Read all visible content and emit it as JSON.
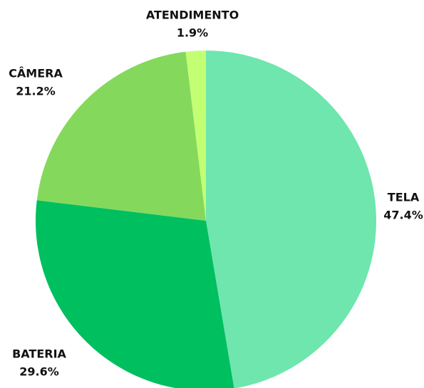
{
  "chart_data": {
    "type": "pie",
    "categories": [
      "TELA",
      "BATERIA",
      "CÂMERA",
      "ATENDIMENTO"
    ],
    "values": [
      47.4,
      29.6,
      21.2,
      1.9
    ],
    "value_labels": [
      "47.4%",
      "29.6%",
      "21.2%",
      "1.9%"
    ],
    "colors": [
      "#6ee6ae",
      "#00bf5f",
      "#84d95c",
      "#c2ff72"
    ]
  }
}
